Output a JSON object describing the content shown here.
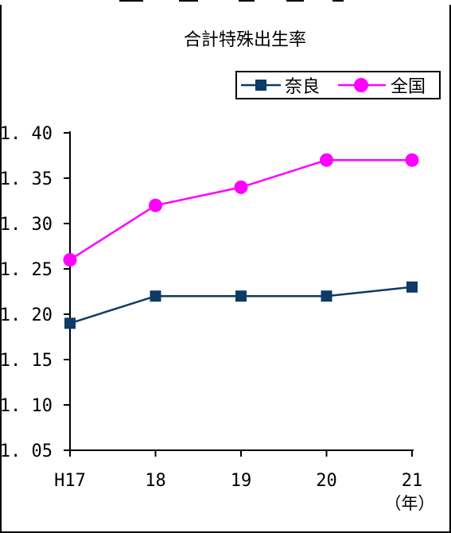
{
  "chart_data": {
    "type": "line",
    "title": "合計特殊出生率",
    "categories": [
      "H17",
      "18",
      "19",
      "20",
      "21"
    ],
    "x_unit": "（年）",
    "ylim": [
      1.05,
      1.4
    ],
    "yticks": [
      "1.40",
      "1.35",
      "1.30",
      "1.25",
      "1.20",
      "1.15",
      "1.10",
      "1.05"
    ],
    "legend_position": "top-right",
    "grid": false,
    "series": [
      {
        "name": "奈良",
        "values": [
          1.19,
          1.22,
          1.22,
          1.22,
          1.23
        ],
        "color": "#0d3a66",
        "marker": "square"
      },
      {
        "name": "全国",
        "values": [
          1.26,
          1.32,
          1.34,
          1.37,
          1.37
        ],
        "color": "#ff00ff",
        "marker": "circle"
      }
    ]
  }
}
